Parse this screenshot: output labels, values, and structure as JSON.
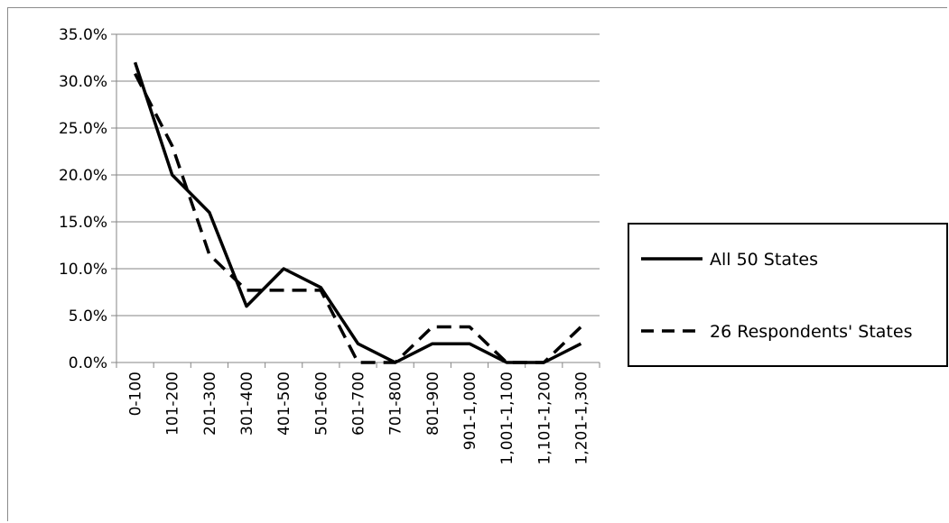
{
  "chart_data": {
    "type": "line",
    "categories": [
      "0-100",
      "101-200",
      "201-300",
      "301-400",
      "401-500",
      "501-600",
      "601-700",
      "701-800",
      "801-900",
      "901-1,000",
      "1,001-1,100",
      "1,101-1,200",
      "1,201-1,300"
    ],
    "series": [
      {
        "name": "All 50 States",
        "values": [
          32.0,
          20.0,
          16.0,
          6.0,
          10.0,
          8.0,
          2.0,
          0.0,
          2.0,
          2.0,
          0.0,
          0.0,
          2.0
        ],
        "line_style": "solid",
        "color": "#000000"
      },
      {
        "name": "26 Respondents' States",
        "values": [
          30.8,
          23.1,
          11.5,
          7.7,
          7.7,
          7.7,
          0.0,
          0.0,
          3.8,
          3.8,
          0.0,
          0.0,
          3.8
        ],
        "line_style": "dashed",
        "color": "#000000"
      }
    ],
    "y_ticks": [
      "0.0%",
      "5.0%",
      "10.0%",
      "15.0%",
      "20.0%",
      "25.0%",
      "30.0%",
      "35.0%"
    ],
    "ylim": [
      0,
      35
    ],
    "grid": true,
    "legend_position": "right"
  }
}
